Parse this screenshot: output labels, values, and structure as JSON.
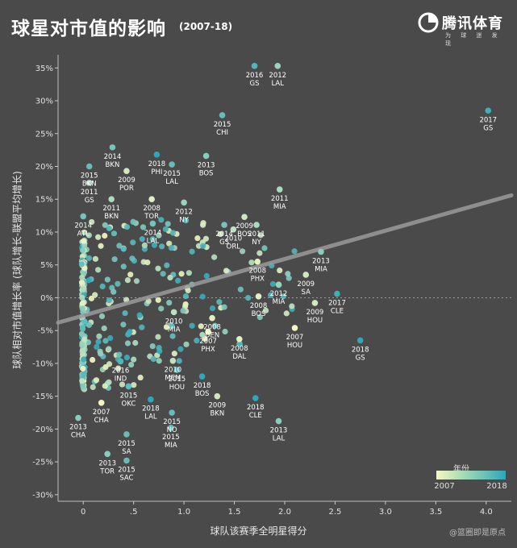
{
  "header": {
    "title": "球星对市值的影响",
    "subtitle": "(2007-18)",
    "logo_text": "腾讯体育",
    "logo_tag": "为 球 迷 发 现"
  },
  "watermark": "@篮圈即是原点",
  "colors": {
    "background": "#4a4a4a",
    "color_low": "#f4f7c2",
    "color_high": "#2fa6b9",
    "trend_line": "#9a9a9a"
  },
  "chart_data": {
    "type": "scatter",
    "xlabel": "球队该赛季全明星得分",
    "ylabel": "球队相对市值增长率 (球队增长-联盟平均增长)",
    "xlim": [
      -0.25,
      4.25
    ],
    "ylim": [
      -31,
      37
    ],
    "x_ticks": [
      0.0,
      0.5,
      1.0,
      1.5,
      2.0,
      2.5,
      3.0,
      3.5,
      4.0
    ],
    "x_tick_labels": [
      "0",
      ".5",
      "1.0",
      "1.5",
      "2.0",
      "2.5",
      "3.0",
      "3.5",
      "4.0"
    ],
    "y_ticks": [
      -30,
      -25,
      -20,
      -15,
      -10,
      -5,
      0,
      5,
      10,
      15,
      20,
      25,
      30,
      35
    ],
    "y_tick_labels": [
      "-30%",
      "-25%",
      "-20%",
      "-15%",
      "-10%",
      "-5%",
      "0%",
      "5%",
      "10%",
      "15%",
      "20%",
      "25%",
      "30%",
      "35%"
    ],
    "zero_line": "dotted",
    "trend_line": {
      "x": [
        -0.25,
        4.25
      ],
      "y": [
        -3.8,
        15.6
      ]
    },
    "legend": {
      "title": "年份",
      "min_label": "2007",
      "max_label": "2018",
      "position": "bottom-right"
    },
    "labeled_points": [
      {
        "x": 1.7,
        "y": 35.3,
        "year": "2016",
        "team": "GS"
      },
      {
        "x": 1.93,
        "y": 35.3,
        "year": "2012",
        "team": "LAL"
      },
      {
        "x": 4.02,
        "y": 28.5,
        "year": "2017",
        "team": "GS"
      },
      {
        "x": 1.38,
        "y": 27.8,
        "year": "2015",
        "team": "CHI"
      },
      {
        "x": 0.29,
        "y": 22.9,
        "year": "2014",
        "team": "BKN"
      },
      {
        "x": 0.06,
        "y": 20.0,
        "year": "2015",
        "team": "BKN"
      },
      {
        "x": 0.73,
        "y": 21.8,
        "year": "2018",
        "team": "PHI"
      },
      {
        "x": 0.88,
        "y": 20.3,
        "year": "2015",
        "team": "LAL"
      },
      {
        "x": 0.43,
        "y": 19.3,
        "year": "2009",
        "team": "POR"
      },
      {
        "x": 1.22,
        "y": 21.6,
        "year": "2013",
        "team": "BOS"
      },
      {
        "x": 0.06,
        "y": 17.5,
        "year": "2011",
        "team": "GS"
      },
      {
        "x": 0.28,
        "y": 15.0,
        "year": "2011",
        "team": "BKN"
      },
      {
        "x": 0.68,
        "y": 15.0,
        "year": "2008",
        "team": "TOR"
      },
      {
        "x": 1.0,
        "y": 14.5,
        "year": "2012",
        "team": "NY"
      },
      {
        "x": 1.6,
        "y": 12.3,
        "year": "2009",
        "team": "BOS"
      },
      {
        "x": 1.95,
        "y": 16.5,
        "year": "2011",
        "team": "MIA"
      },
      {
        "x": 0.0,
        "y": 12.4,
        "year": "2014",
        "team": "ATL"
      },
      {
        "x": 0.69,
        "y": 11.3,
        "year": "2014",
        "team": "LAL"
      },
      {
        "x": 1.4,
        "y": 11.1,
        "year": "2014",
        "team": "GS"
      },
      {
        "x": 1.49,
        "y": 10.4,
        "year": "2010",
        "team": "ORL"
      },
      {
        "x": 1.72,
        "y": 11.1,
        "year": "2011",
        "team": "NY"
      },
      {
        "x": 1.73,
        "y": 5.5,
        "year": "2008",
        "team": "PHX"
      },
      {
        "x": 2.36,
        "y": 7.0,
        "year": "2013",
        "team": "MIA"
      },
      {
        "x": 2.21,
        "y": 3.5,
        "year": "2009",
        "team": "SA"
      },
      {
        "x": 1.94,
        "y": 2.0,
        "year": "2012",
        "team": "MIA"
      },
      {
        "x": 1.74,
        "y": 0.2,
        "year": "2008",
        "team": "BOS"
      },
      {
        "x": 2.3,
        "y": -0.8,
        "year": "2009",
        "team": "HOU"
      },
      {
        "x": 2.52,
        "y": 0.6,
        "year": "2017",
        "team": "CLE"
      },
      {
        "x": 0.9,
        "y": -2.2,
        "year": "2010",
        "team": "MIA"
      },
      {
        "x": 1.28,
        "y": -3.1,
        "year": "2008",
        "team": "DEN"
      },
      {
        "x": 1.24,
        "y": -5.2,
        "year": "2007",
        "team": "PHX"
      },
      {
        "x": 2.1,
        "y": -4.6,
        "year": "2007",
        "team": "HOU"
      },
      {
        "x": 1.55,
        "y": -6.3,
        "year": "2008",
        "team": "DAL"
      },
      {
        "x": 2.75,
        "y": -6.5,
        "year": "2018",
        "team": "GS"
      },
      {
        "x": 0.37,
        "y": -9.7,
        "year": "2016",
        "team": "IND"
      },
      {
        "x": 0.89,
        "y": -9.6,
        "year": "2010",
        "team": "MEM"
      },
      {
        "x": 0.93,
        "y": -11.0,
        "year": "2015",
        "team": "HOU"
      },
      {
        "x": 1.18,
        "y": -12.0,
        "year": "2018",
        "team": "BOS"
      },
      {
        "x": 0.45,
        "y": -13.5,
        "year": "2015",
        "team": "OKC"
      },
      {
        "x": 0.18,
        "y": -16.0,
        "year": "2007",
        "team": "CHA"
      },
      {
        "x": 0.67,
        "y": -15.5,
        "year": "2018",
        "team": "LAL"
      },
      {
        "x": 1.33,
        "y": -15.0,
        "year": "2009",
        "team": "BKN"
      },
      {
        "x": 1.71,
        "y": -15.3,
        "year": "2018",
        "team": "CLE"
      },
      {
        "x": 0.88,
        "y": -17.5,
        "year": "2015",
        "team": "NO"
      },
      {
        "x": -0.05,
        "y": -18.3,
        "year": "2013",
        "team": "CHA"
      },
      {
        "x": 0.43,
        "y": -20.8,
        "year": "2015",
        "team": "SA"
      },
      {
        "x": 0.87,
        "y": -19.8,
        "year": "2015",
        "team": "MIA"
      },
      {
        "x": 1.94,
        "y": -18.8,
        "year": "2013",
        "team": "LAL"
      },
      {
        "x": 0.24,
        "y": -23.8,
        "year": "2013",
        "team": "TOR"
      },
      {
        "x": 0.43,
        "y": -24.8,
        "year": "2015",
        "team": "SAC"
      }
    ]
  }
}
